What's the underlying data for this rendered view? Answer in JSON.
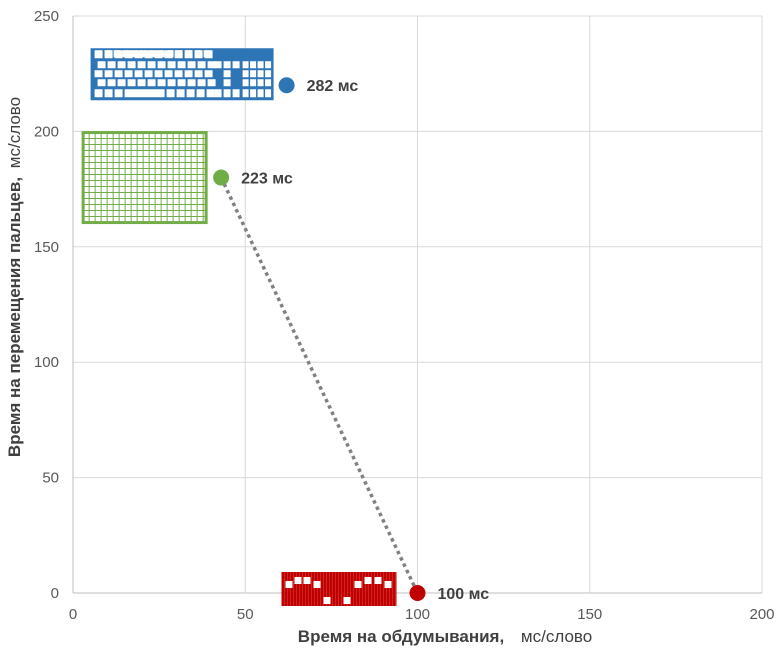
{
  "chart_data": {
    "type": "scatter",
    "title": "",
    "xlabel": {
      "main": "Время на обдумывания,",
      "unit": "мс/слово"
    },
    "ylabel": {
      "main": "Время на перемещения пальцев,",
      "unit": "мс/слово"
    },
    "xlim": [
      0,
      200
    ],
    "ylim": [
      0,
      250
    ],
    "xticks": [
      "0",
      "50",
      "100",
      "150",
      "200"
    ],
    "yticks": [
      "0",
      "50",
      "100",
      "150",
      "200",
      "250"
    ],
    "grid": true,
    "points": [
      {
        "x": 62,
        "y": 220,
        "label": "282 мс",
        "color": "#2e75b6",
        "icon": "keyboard-icon"
      },
      {
        "x": 43,
        "y": 180,
        "label": "223 мс",
        "color": "#70ad47",
        "icon": "grid-keypad-icon"
      },
      {
        "x": 100,
        "y": 0,
        "label": "100 мс",
        "color": "#c00000",
        "icon": "chord-keypad-icon"
      }
    ],
    "trend": {
      "from": 1,
      "to": 2,
      "style": "dotted",
      "color": "#808080"
    }
  }
}
